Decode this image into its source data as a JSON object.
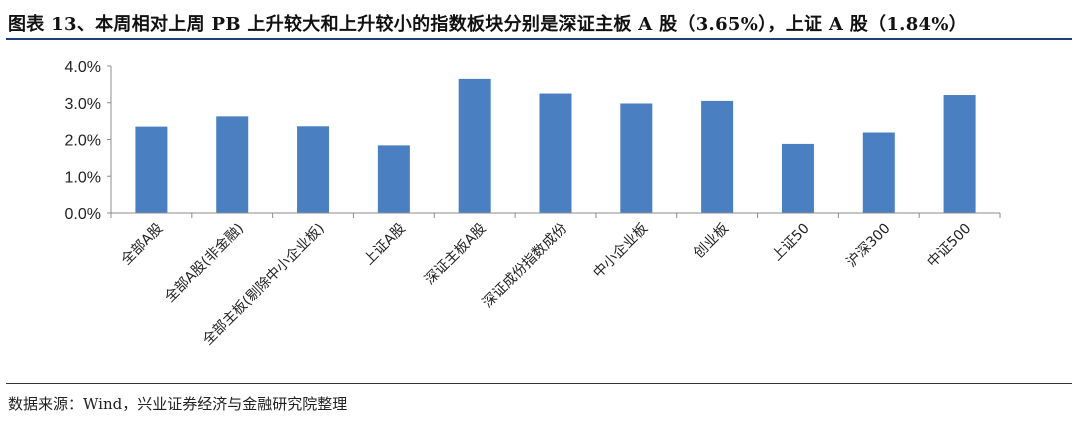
{
  "header": {
    "title": "图表 13、本周相对上周 PB 上升较大和上升较小的指数板块分别是深证主板 A 股（3.65%），上证 A 股（1.84%）"
  },
  "footer": {
    "source": "数据来源：Wind，兴业证券经济与金融研究院整理"
  },
  "chart_data": {
    "type": "bar",
    "categories": [
      "全部A股",
      "全部A股(非金融)",
      "全部主板(剔除中小企业板)",
      "上证A股",
      "深证主板A股",
      "深证成份指数成份",
      "中小企业板",
      "创业板",
      "上证50",
      "沪深300",
      "中证500"
    ],
    "values": [
      2.35,
      2.63,
      2.36,
      1.84,
      3.65,
      3.25,
      2.98,
      3.05,
      1.88,
      2.19,
      3.21
    ],
    "yticks": [
      "0.0%",
      "1.0%",
      "2.0%",
      "3.0%",
      "4.0%"
    ],
    "ylim": [
      0,
      4
    ],
    "bar_color": "#4a7fc1",
    "grid": false,
    "legend": "none"
  }
}
